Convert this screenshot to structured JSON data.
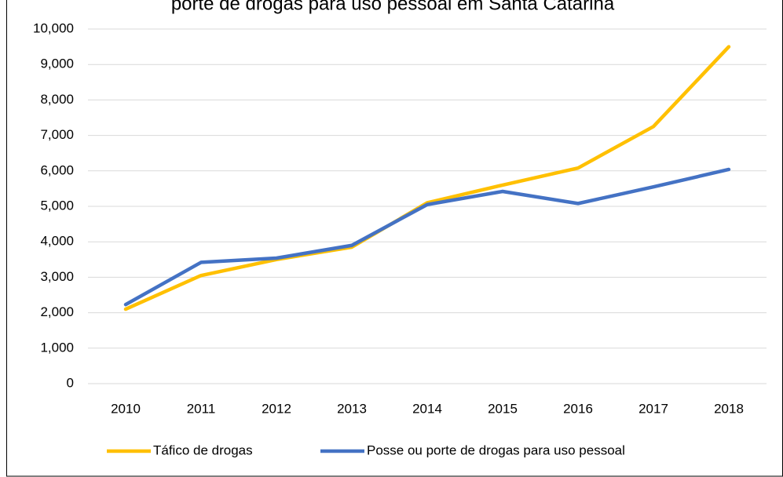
{
  "chart_data": {
    "type": "line",
    "title": "porte de drogas para uso pessoal em Santa Catarina",
    "categories": [
      "2010",
      "2011",
      "2012",
      "2013",
      "2014",
      "2015",
      "2016",
      "2017",
      "2018"
    ],
    "series": [
      {
        "name": "Táfico de drogas",
        "color": "#FFC000",
        "values": [
          2100,
          3050,
          3500,
          3850,
          5100,
          5600,
          6080,
          7250,
          9500
        ]
      },
      {
        "name": "Posse ou porte de drogas para uso pessoal",
        "color": "#4472C4",
        "values": [
          2230,
          3420,
          3540,
          3900,
          5050,
          5420,
          5080,
          5550,
          6040
        ]
      }
    ],
    "ylim": [
      0,
      10000
    ],
    "yticks": [
      0,
      {
        "value": 1000,
        "label": "1,000"
      },
      {
        "value": 2000,
        "label": "2,000"
      },
      {
        "value": 3000,
        "label": "3,000"
      },
      {
        "value": 4000,
        "label": "4,000"
      },
      {
        "value": 5000,
        "label": "5,000"
      },
      {
        "value": 6000,
        "label": "6,000"
      },
      {
        "value": 7000,
        "label": "7,000"
      },
      {
        "value": 8000,
        "label": "8,000"
      },
      {
        "value": 9000,
        "label": "9,000"
      },
      {
        "value": 10000,
        "label": "10,000"
      }
    ],
    "grid": true,
    "legend": "bottom"
  }
}
